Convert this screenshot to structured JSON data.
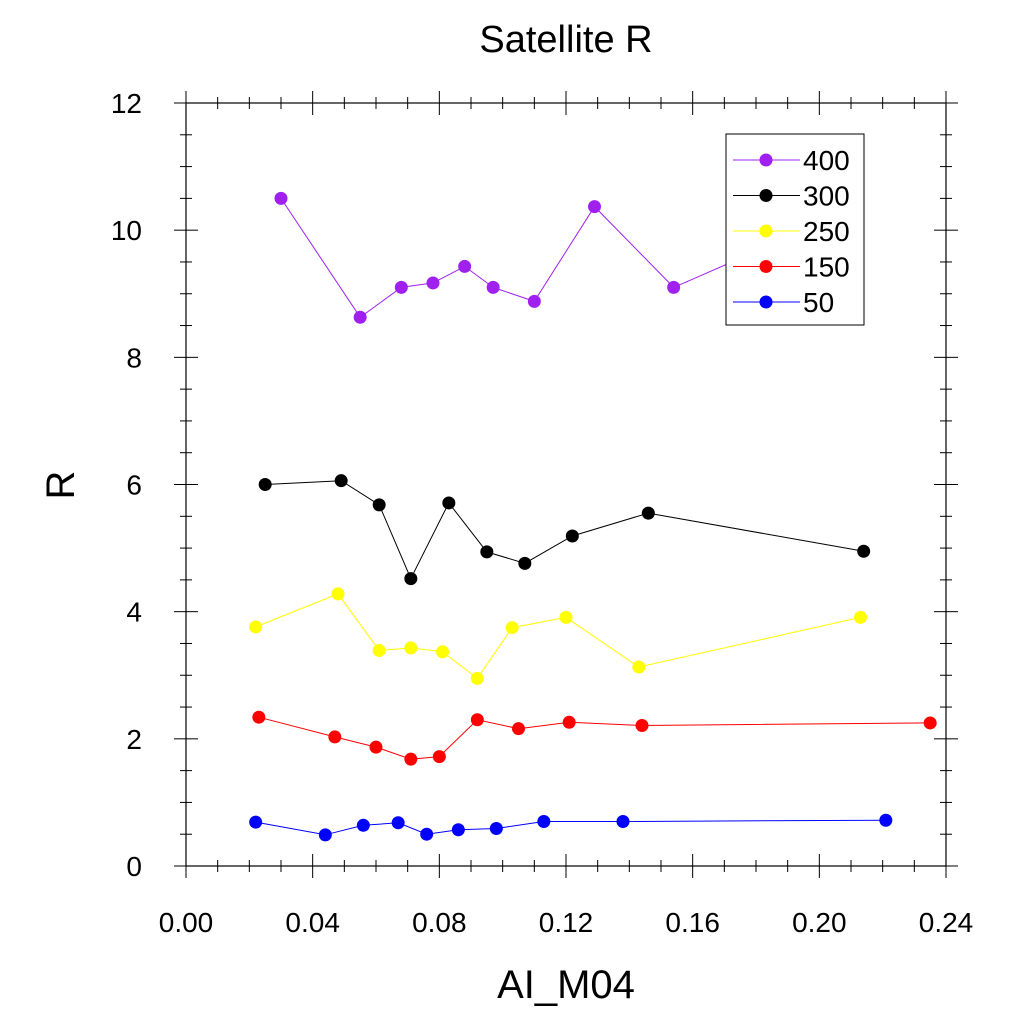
{
  "chart_data": {
    "type": "line",
    "title": "Satellite R",
    "xlabel": "AI_M04",
    "ylabel": "R",
    "xlim": [
      0,
      0.24
    ],
    "ylim": [
      0,
      12
    ],
    "xticks": [
      "0.00",
      "0.04",
      "0.08",
      "0.12",
      "0.16",
      "0.20",
      "0.24"
    ],
    "yticks": [
      "0",
      "2",
      "4",
      "6",
      "8",
      "10",
      "12"
    ],
    "grid": false,
    "legend_position": "top-right",
    "series": [
      {
        "name": "400",
        "color": "#a020f0",
        "x": [
          0.03,
          0.055,
          0.068,
          0.078,
          0.088,
          0.097,
          0.11,
          0.129,
          0.154,
          0.2
        ],
        "y": [
          10.5,
          8.63,
          9.1,
          9.17,
          9.43,
          9.1,
          8.88,
          10.37,
          9.1,
          10.1
        ]
      },
      {
        "name": "300",
        "color": "#000000",
        "x": [
          0.025,
          0.049,
          0.061,
          0.071,
          0.083,
          0.095,
          0.107,
          0.122,
          0.146,
          0.214
        ],
        "y": [
          6.0,
          6.06,
          5.68,
          4.52,
          5.71,
          4.94,
          4.76,
          5.19,
          5.55,
          4.95
        ]
      },
      {
        "name": "250",
        "color": "#ffff00",
        "x": [
          0.022,
          0.048,
          0.061,
          0.071,
          0.081,
          0.092,
          0.103,
          0.12,
          0.143,
          0.213
        ],
        "y": [
          3.76,
          4.28,
          3.39,
          3.43,
          3.37,
          2.95,
          3.75,
          3.91,
          3.13,
          3.91
        ]
      },
      {
        "name": "150",
        "color": "#ff0000",
        "x": [
          0.023,
          0.047,
          0.06,
          0.071,
          0.08,
          0.092,
          0.105,
          0.121,
          0.144,
          0.235
        ],
        "y": [
          2.34,
          2.03,
          1.87,
          1.68,
          1.72,
          2.3,
          2.16,
          2.26,
          2.21,
          2.25
        ]
      },
      {
        "name": "50",
        "color": "#0000ff",
        "x": [
          0.022,
          0.044,
          0.056,
          0.067,
          0.076,
          0.086,
          0.098,
          0.113,
          0.138,
          0.221
        ],
        "y": [
          0.69,
          0.49,
          0.64,
          0.68,
          0.5,
          0.57,
          0.59,
          0.7,
          0.7,
          0.72
        ]
      }
    ]
  }
}
